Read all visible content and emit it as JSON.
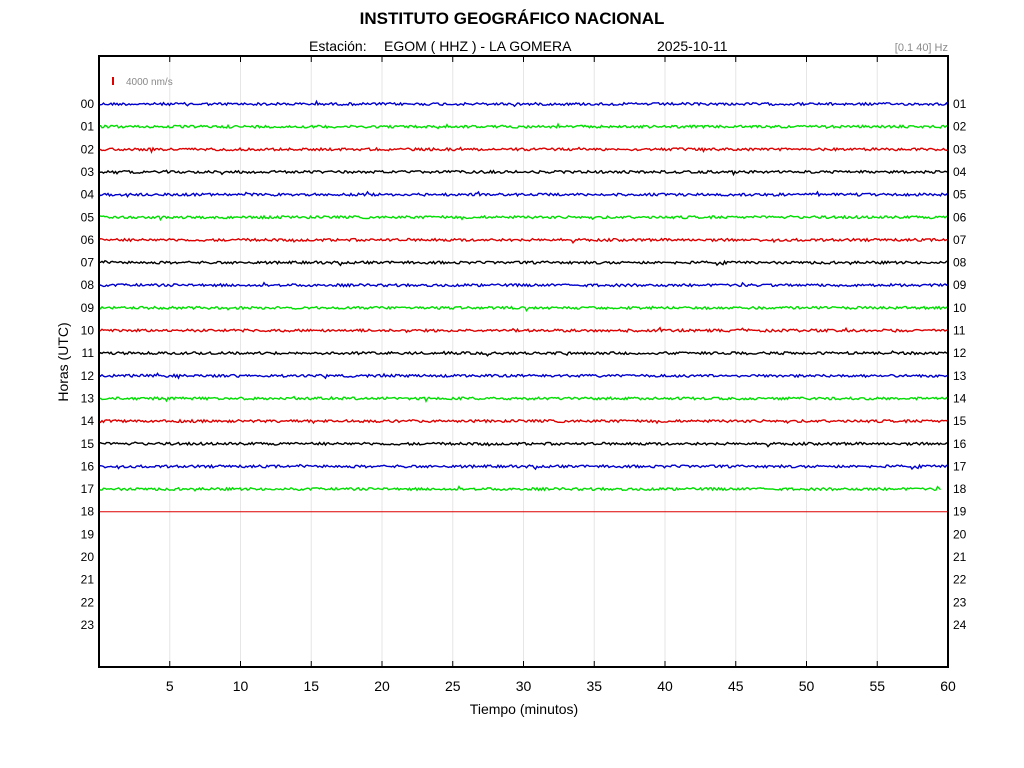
{
  "header": {
    "institution": "INSTITUTO GEOGRÁFICO NACIONAL",
    "station_label": "Estación:",
    "station": "EGOM ( HHZ ) - LA GOMERA",
    "date": "2025-10-11",
    "filter": "[0.1 40] Hz"
  },
  "chart_data": {
    "type": "line",
    "title": "INSTITUTO GEOGRÁFICO NACIONAL",
    "xlabel": "Tiempo (minutos)",
    "ylabel": "Horas (UTC)",
    "xlim": [
      0,
      60
    ],
    "x_ticks": [
      5,
      10,
      15,
      20,
      25,
      30,
      35,
      40,
      45,
      50,
      55,
      60
    ],
    "left_tick_labels": [
      "00",
      "01",
      "02",
      "03",
      "04",
      "05",
      "06",
      "07",
      "08",
      "09",
      "10",
      "11",
      "12",
      "13",
      "14",
      "15",
      "16",
      "17",
      "18",
      "19",
      "20",
      "21",
      "22",
      "23"
    ],
    "right_tick_labels": [
      "01",
      "02",
      "03",
      "04",
      "05",
      "06",
      "07",
      "08",
      "09",
      "10",
      "11",
      "12",
      "13",
      "14",
      "15",
      "16",
      "17",
      "18",
      "19",
      "20",
      "21",
      "22",
      "23",
      "24"
    ],
    "scale_bar": {
      "value": 4000,
      "label": "4000 nm/s",
      "color": "#e00000"
    },
    "grid": "vertical",
    "trace_colors": [
      "#0000cc",
      "#00dd00",
      "#dd0000",
      "#000000"
    ],
    "traces": [
      {
        "hour": "00",
        "color": "#0000cc",
        "end_minute": 60
      },
      {
        "hour": "01",
        "color": "#00dd00",
        "end_minute": 60
      },
      {
        "hour": "02",
        "color": "#dd0000",
        "end_minute": 60
      },
      {
        "hour": "03",
        "color": "#000000",
        "end_minute": 60
      },
      {
        "hour": "04",
        "color": "#0000cc",
        "end_minute": 60
      },
      {
        "hour": "05",
        "color": "#00dd00",
        "end_minute": 60
      },
      {
        "hour": "06",
        "color": "#dd0000",
        "end_minute": 60
      },
      {
        "hour": "07",
        "color": "#000000",
        "end_minute": 60
      },
      {
        "hour": "08",
        "color": "#0000cc",
        "end_minute": 60
      },
      {
        "hour": "09",
        "color": "#00dd00",
        "end_minute": 60
      },
      {
        "hour": "10",
        "color": "#dd0000",
        "end_minute": 60
      },
      {
        "hour": "11",
        "color": "#000000",
        "end_minute": 60
      },
      {
        "hour": "12",
        "color": "#0000cc",
        "end_minute": 60
      },
      {
        "hour": "13",
        "color": "#00dd00",
        "end_minute": 60
      },
      {
        "hour": "14",
        "color": "#dd0000",
        "end_minute": 60
      },
      {
        "hour": "15",
        "color": "#000000",
        "end_minute": 60
      },
      {
        "hour": "16",
        "color": "#0000cc",
        "end_minute": 60
      },
      {
        "hour": "17",
        "color": "#00dd00",
        "end_minute": 59.5
      },
      {
        "hour": "18",
        "color": "#dd0000",
        "end_minute": 60,
        "flat": true
      }
    ]
  }
}
